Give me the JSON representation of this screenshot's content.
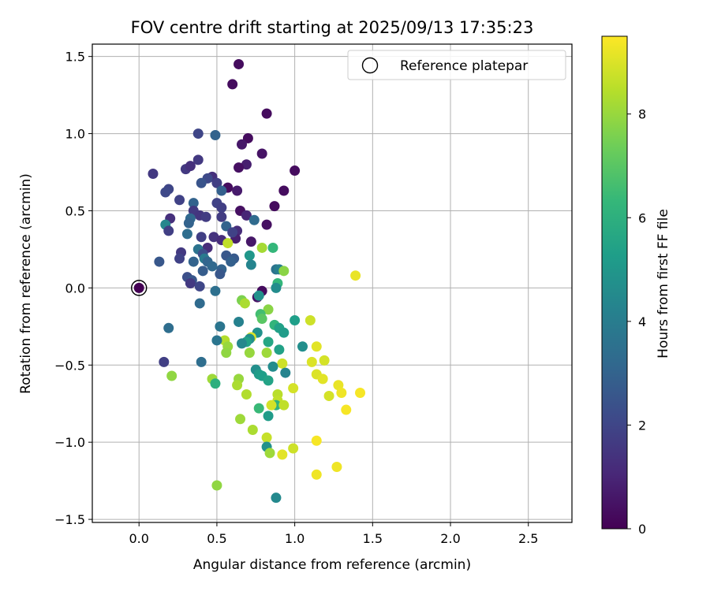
{
  "chart_data": {
    "type": "scatter",
    "title": "FOV centre drift starting at 2025/09/13 17:35:23",
    "xlabel": "Angular distance from reference (arcmin)",
    "ylabel": "Rotation from reference (arcmin)",
    "xlim": [
      -0.3,
      2.78
    ],
    "ylim": [
      -1.52,
      1.58
    ],
    "xticks": [
      0.0,
      0.5,
      1.0,
      1.5,
      2.0,
      2.5
    ],
    "xtick_labels": [
      "0.0",
      "0.5",
      "1.0",
      "1.5",
      "2.0",
      "2.5"
    ],
    "yticks": [
      -1.5,
      -1.0,
      -0.5,
      0.0,
      0.5,
      1.0,
      1.5
    ],
    "ytick_labels": [
      "−1.5",
      "−1.0",
      "−0.5",
      "0.0",
      "0.5",
      "1.0",
      "1.5"
    ],
    "grid": true,
    "legend": {
      "placement": "top-right",
      "entries": [
        "Reference platepar"
      ]
    },
    "reference_point": {
      "x": 0.0,
      "y": 0.0
    },
    "colorbar": {
      "label": "Hours from first FF file",
      "colormap": "viridis",
      "range": [
        0,
        9.5
      ],
      "ticks": [
        0,
        2,
        4,
        6,
        8
      ],
      "tick_labels": [
        "0",
        "2",
        "4",
        "6",
        "8"
      ]
    },
    "point_color_stops": [
      "#440154",
      "#482878",
      "#3e4989",
      "#31688e",
      "#26828e",
      "#1f9e89",
      "#35b779",
      "#6ece58",
      "#b5de2b",
      "#fde725"
    ],
    "points": [
      {
        "x": 0.64,
        "y": 1.45,
        "h": 0.3
      },
      {
        "x": 0.6,
        "y": 1.32,
        "h": 0.3
      },
      {
        "x": 0.82,
        "y": 1.13,
        "h": 0.3
      },
      {
        "x": 0.7,
        "y": 0.97,
        "h": 0.3
      },
      {
        "x": 0.66,
        "y": 0.93,
        "h": 0.6
      },
      {
        "x": 0.79,
        "y": 0.87,
        "h": 0.5
      },
      {
        "x": 0.69,
        "y": 0.8,
        "h": 0.8
      },
      {
        "x": 0.64,
        "y": 0.78,
        "h": 0.4
      },
      {
        "x": 1.0,
        "y": 0.76,
        "h": 0.3
      },
      {
        "x": 0.57,
        "y": 0.65,
        "h": 0.3
      },
      {
        "x": 0.63,
        "y": 0.63,
        "h": 0.7
      },
      {
        "x": 0.93,
        "y": 0.63,
        "h": 0.3
      },
      {
        "x": 0.87,
        "y": 0.53,
        "h": 0.3
      },
      {
        "x": 0.65,
        "y": 0.5,
        "h": 0.4
      },
      {
        "x": 0.69,
        "y": 0.47,
        "h": 1.0
      },
      {
        "x": 0.82,
        "y": 0.41,
        "h": 0.4
      },
      {
        "x": 0.63,
        "y": 0.37,
        "h": 1.2
      },
      {
        "x": 0.72,
        "y": 0.3,
        "h": 0.6
      },
      {
        "x": 0.62,
        "y": 0.32,
        "h": 0.8
      },
      {
        "x": 0.79,
        "y": -0.02,
        "h": 0.3
      },
      {
        "x": 0.76,
        "y": -0.06,
        "h": 0.5
      },
      {
        "x": 0.38,
        "y": 1.0,
        "h": 2.0
      },
      {
        "x": 0.49,
        "y": 0.99,
        "h": 3.0
      },
      {
        "x": 0.38,
        "y": 0.83,
        "h": 1.6
      },
      {
        "x": 0.3,
        "y": 0.77,
        "h": 1.6
      },
      {
        "x": 0.33,
        "y": 0.79,
        "h": 1.3
      },
      {
        "x": 0.09,
        "y": 0.74,
        "h": 1.6
      },
      {
        "x": 0.47,
        "y": 0.72,
        "h": 1.3
      },
      {
        "x": 0.44,
        "y": 0.71,
        "h": 2.1
      },
      {
        "x": 0.4,
        "y": 0.68,
        "h": 2.5
      },
      {
        "x": 0.5,
        "y": 0.68,
        "h": 1.8
      },
      {
        "x": 0.53,
        "y": 0.63,
        "h": 2.9
      },
      {
        "x": 0.19,
        "y": 0.64,
        "h": 2.0
      },
      {
        "x": 0.17,
        "y": 0.62,
        "h": 2.1
      },
      {
        "x": 0.26,
        "y": 0.57,
        "h": 1.9
      },
      {
        "x": 0.35,
        "y": 0.55,
        "h": 3.0
      },
      {
        "x": 0.5,
        "y": 0.55,
        "h": 1.9
      },
      {
        "x": 0.53,
        "y": 0.52,
        "h": 1.8
      },
      {
        "x": 0.35,
        "y": 0.5,
        "h": 1.6
      },
      {
        "x": 0.2,
        "y": 0.45,
        "h": 1.3
      },
      {
        "x": 0.39,
        "y": 0.47,
        "h": 1.5
      },
      {
        "x": 0.43,
        "y": 0.46,
        "h": 1.7
      },
      {
        "x": 0.33,
        "y": 0.45,
        "h": 3.2
      },
      {
        "x": 0.32,
        "y": 0.42,
        "h": 3.0
      },
      {
        "x": 0.74,
        "y": 0.44,
        "h": 3.3
      },
      {
        "x": 0.53,
        "y": 0.46,
        "h": 1.7
      },
      {
        "x": 0.17,
        "y": 0.41,
        "h": 4.4
      },
      {
        "x": 0.19,
        "y": 0.37,
        "h": 1.8
      },
      {
        "x": 0.56,
        "y": 0.4,
        "h": 3.0
      },
      {
        "x": 0.6,
        "y": 0.36,
        "h": 1.9
      },
      {
        "x": 0.4,
        "y": 0.33,
        "h": 1.8
      },
      {
        "x": 0.48,
        "y": 0.33,
        "h": 1.4
      },
      {
        "x": 0.31,
        "y": 0.35,
        "h": 3.4
      },
      {
        "x": 0.53,
        "y": 0.31,
        "h": 1.2
      },
      {
        "x": 0.44,
        "y": 0.26,
        "h": 1.2
      },
      {
        "x": 0.38,
        "y": 0.25,
        "h": 3.6
      },
      {
        "x": 0.41,
        "y": 0.22,
        "h": 2.3
      },
      {
        "x": 0.27,
        "y": 0.23,
        "h": 1.6
      },
      {
        "x": 0.42,
        "y": 0.19,
        "h": 3.9
      },
      {
        "x": 0.56,
        "y": 0.21,
        "h": 2.6
      },
      {
        "x": 0.26,
        "y": 0.19,
        "h": 1.9
      },
      {
        "x": 0.13,
        "y": 0.17,
        "h": 2.6
      },
      {
        "x": 0.35,
        "y": 0.17,
        "h": 3.0
      },
      {
        "x": 0.44,
        "y": 0.17,
        "h": 3.1
      },
      {
        "x": 0.61,
        "y": 0.19,
        "h": 2.7
      },
      {
        "x": 0.59,
        "y": 0.17,
        "h": 2.9
      },
      {
        "x": 0.71,
        "y": 0.21,
        "h": 5.0
      },
      {
        "x": 0.72,
        "y": 0.15,
        "h": 4.3
      },
      {
        "x": 0.41,
        "y": 0.11,
        "h": 2.8
      },
      {
        "x": 0.47,
        "y": 0.14,
        "h": 3.2
      },
      {
        "x": 0.53,
        "y": 0.12,
        "h": 3.0
      },
      {
        "x": 0.52,
        "y": 0.09,
        "h": 2.6
      },
      {
        "x": 0.31,
        "y": 0.07,
        "h": 2.3
      },
      {
        "x": 0.34,
        "y": 0.05,
        "h": 2.6
      },
      {
        "x": 0.33,
        "y": 0.03,
        "h": 1.6
      },
      {
        "x": 0.39,
        "y": 0.01,
        "h": 2.0
      },
      {
        "x": 0.49,
        "y": -0.02,
        "h": 3.5
      },
      {
        "x": 0.39,
        "y": -0.1,
        "h": 3.3
      },
      {
        "x": 0.19,
        "y": -0.26,
        "h": 3.4
      },
      {
        "x": 0.16,
        "y": -0.48,
        "h": 1.8
      },
      {
        "x": 0.4,
        "y": -0.48,
        "h": 3.4
      },
      {
        "x": 0.88,
        "y": 0.12,
        "h": 3.6
      },
      {
        "x": 0.9,
        "y": 0.12,
        "h": 4.1
      },
      {
        "x": 0.86,
        "y": 0.26,
        "h": 6.3
      },
      {
        "x": 0.93,
        "y": 0.11,
        "h": 7.8
      },
      {
        "x": 0.89,
        "y": 0.03,
        "h": 6.3
      },
      {
        "x": 0.88,
        "y": 0.0,
        "h": 4.6
      },
      {
        "x": 1.39,
        "y": 0.08,
        "h": 9.2
      },
      {
        "x": 0.79,
        "y": 0.26,
        "h": 8.2
      },
      {
        "x": 0.57,
        "y": 0.29,
        "h": 8.6
      },
      {
        "x": 0.66,
        "y": -0.08,
        "h": 7.6
      },
      {
        "x": 0.68,
        "y": -0.1,
        "h": 8.3
      },
      {
        "x": 0.77,
        "y": -0.05,
        "h": 4.8
      },
      {
        "x": 0.83,
        "y": -0.14,
        "h": 7.8
      },
      {
        "x": 0.78,
        "y": -0.17,
        "h": 6.6
      },
      {
        "x": 0.79,
        "y": -0.2,
        "h": 7.0
      },
      {
        "x": 0.64,
        "y": -0.22,
        "h": 4.2
      },
      {
        "x": 0.87,
        "y": -0.24,
        "h": 6.2
      },
      {
        "x": 0.9,
        "y": -0.26,
        "h": 5.4
      },
      {
        "x": 0.93,
        "y": -0.29,
        "h": 5.2
      },
      {
        "x": 1.0,
        "y": -0.21,
        "h": 5.3
      },
      {
        "x": 1.1,
        "y": -0.21,
        "h": 8.8
      },
      {
        "x": 0.52,
        "y": -0.25,
        "h": 3.7
      },
      {
        "x": 0.76,
        "y": -0.29,
        "h": 4.8
      },
      {
        "x": 0.72,
        "y": -0.32,
        "h": 9.0
      },
      {
        "x": 0.71,
        "y": -0.33,
        "h": 4.7
      },
      {
        "x": 0.69,
        "y": -0.35,
        "h": 5.4
      },
      {
        "x": 0.66,
        "y": -0.36,
        "h": 4.4
      },
      {
        "x": 0.83,
        "y": -0.35,
        "h": 5.6
      },
      {
        "x": 0.55,
        "y": -0.34,
        "h": 8.4
      },
      {
        "x": 0.5,
        "y": -0.34,
        "h": 3.7
      },
      {
        "x": 0.57,
        "y": -0.38,
        "h": 8.0
      },
      {
        "x": 1.05,
        "y": -0.38,
        "h": 4.7
      },
      {
        "x": 1.14,
        "y": -0.38,
        "h": 9.1
      },
      {
        "x": 0.56,
        "y": -0.42,
        "h": 7.9
      },
      {
        "x": 0.71,
        "y": -0.42,
        "h": 8.0
      },
      {
        "x": 0.82,
        "y": -0.42,
        "h": 8.1
      },
      {
        "x": 0.9,
        "y": -0.4,
        "h": 5.4
      },
      {
        "x": 1.11,
        "y": -0.48,
        "h": 9.0
      },
      {
        "x": 1.19,
        "y": -0.47,
        "h": 8.9
      },
      {
        "x": 0.92,
        "y": -0.49,
        "h": 8.8
      },
      {
        "x": 0.86,
        "y": -0.51,
        "h": 4.6
      },
      {
        "x": 0.75,
        "y": -0.53,
        "h": 4.7
      },
      {
        "x": 0.77,
        "y": -0.56,
        "h": 5.2
      },
      {
        "x": 0.79,
        "y": -0.57,
        "h": 5.3
      },
      {
        "x": 0.94,
        "y": -0.55,
        "h": 4.3
      },
      {
        "x": 1.14,
        "y": -0.56,
        "h": 9.0
      },
      {
        "x": 0.21,
        "y": -0.57,
        "h": 7.9
      },
      {
        "x": 0.47,
        "y": -0.59,
        "h": 8.1
      },
      {
        "x": 0.64,
        "y": -0.59,
        "h": 8.0
      },
      {
        "x": 1.18,
        "y": -0.59,
        "h": 9.1
      },
      {
        "x": 0.83,
        "y": -0.6,
        "h": 5.5
      },
      {
        "x": 0.49,
        "y": -0.62,
        "h": 6.0
      },
      {
        "x": 0.63,
        "y": -0.63,
        "h": 8.3
      },
      {
        "x": 0.99,
        "y": -0.65,
        "h": 8.9
      },
      {
        "x": 1.28,
        "y": -0.63,
        "h": 9.2
      },
      {
        "x": 1.3,
        "y": -0.68,
        "h": 9.3
      },
      {
        "x": 1.42,
        "y": -0.68,
        "h": 9.4
      },
      {
        "x": 0.89,
        "y": -0.69,
        "h": 8.5
      },
      {
        "x": 0.69,
        "y": -0.69,
        "h": 8.4
      },
      {
        "x": 1.22,
        "y": -0.7,
        "h": 8.9
      },
      {
        "x": 0.89,
        "y": -0.73,
        "h": 8.6
      },
      {
        "x": 0.88,
        "y": -0.76,
        "h": 6.1
      },
      {
        "x": 0.85,
        "y": -0.76,
        "h": 8.9
      },
      {
        "x": 0.93,
        "y": -0.76,
        "h": 8.6
      },
      {
        "x": 0.77,
        "y": -0.78,
        "h": 6.4
      },
      {
        "x": 1.33,
        "y": -0.79,
        "h": 9.4
      },
      {
        "x": 0.83,
        "y": -0.83,
        "h": 5.2
      },
      {
        "x": 0.65,
        "y": -0.85,
        "h": 8.1
      },
      {
        "x": 0.73,
        "y": -0.92,
        "h": 8.3
      },
      {
        "x": 0.82,
        "y": -0.97,
        "h": 8.7
      },
      {
        "x": 1.14,
        "y": -0.99,
        "h": 9.4
      },
      {
        "x": 0.82,
        "y": -1.03,
        "h": 4.8
      },
      {
        "x": 0.84,
        "y": -1.07,
        "h": 8.1
      },
      {
        "x": 0.99,
        "y": -1.04,
        "h": 8.8
      },
      {
        "x": 0.92,
        "y": -1.08,
        "h": 9.1
      },
      {
        "x": 1.14,
        "y": -1.21,
        "h": 9.3
      },
      {
        "x": 1.27,
        "y": -1.16,
        "h": 9.3
      },
      {
        "x": 0.5,
        "y": -1.28,
        "h": 7.9
      },
      {
        "x": 0.88,
        "y": -1.36,
        "h": 4.5
      }
    ]
  }
}
